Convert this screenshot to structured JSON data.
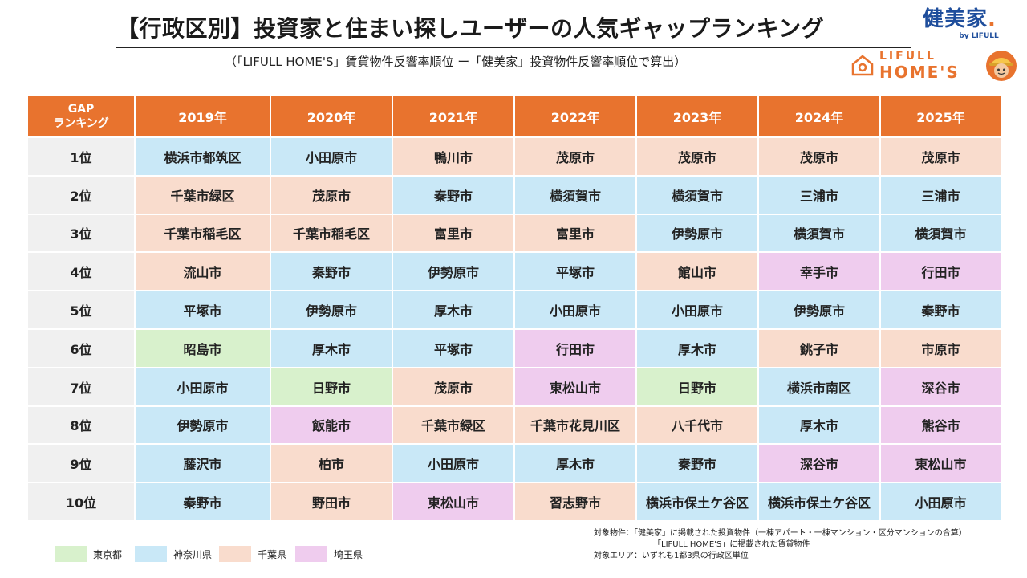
{
  "header": {
    "title": "【行政区別】投資家と住まい探しユーザーの人気ギャップランキング",
    "subtitle": "（「LIFULL HOME'S」賃貸物件反響率順位 ー「健美家」投資物件反響率順位で算出）"
  },
  "logos": {
    "kenbiya": {
      "main": "健美家",
      "dot": ".",
      "sub": "by LIFULL"
    },
    "homes": {
      "line1": "LIFULL",
      "line2": "HOME'S"
    }
  },
  "colors": {
    "header_bg": "#e8732e",
    "tokyo": "#d8f1cc",
    "kanagawa": "#c9e8f7",
    "chiba": "#f9dccd",
    "saitama": "#efccee"
  },
  "table": {
    "header": {
      "gap_line1": "GAP",
      "gap_line2": "ランキング",
      "years": [
        "2019年",
        "2020年",
        "2021年",
        "2022年",
        "2023年",
        "2024年",
        "2025年"
      ]
    },
    "rows": [
      {
        "rank": "1位",
        "cells": [
          {
            "name": "横浜市都筑区",
            "pref": "kanagawa"
          },
          {
            "name": "小田原市",
            "pref": "kanagawa"
          },
          {
            "name": "鴨川市",
            "pref": "chiba"
          },
          {
            "name": "茂原市",
            "pref": "chiba"
          },
          {
            "name": "茂原市",
            "pref": "chiba"
          },
          {
            "name": "茂原市",
            "pref": "chiba"
          },
          {
            "name": "茂原市",
            "pref": "chiba"
          }
        ]
      },
      {
        "rank": "2位",
        "cells": [
          {
            "name": "千葉市緑区",
            "pref": "chiba"
          },
          {
            "name": "茂原市",
            "pref": "chiba"
          },
          {
            "name": "秦野市",
            "pref": "kanagawa"
          },
          {
            "name": "横須賀市",
            "pref": "kanagawa"
          },
          {
            "name": "横須賀市",
            "pref": "kanagawa"
          },
          {
            "name": "三浦市",
            "pref": "kanagawa"
          },
          {
            "name": "三浦市",
            "pref": "kanagawa"
          }
        ]
      },
      {
        "rank": "3位",
        "cells": [
          {
            "name": "千葉市稲毛区",
            "pref": "chiba"
          },
          {
            "name": "千葉市稲毛区",
            "pref": "chiba"
          },
          {
            "name": "富里市",
            "pref": "chiba"
          },
          {
            "name": "富里市",
            "pref": "chiba"
          },
          {
            "name": "伊勢原市",
            "pref": "kanagawa"
          },
          {
            "name": "横須賀市",
            "pref": "kanagawa"
          },
          {
            "name": "横須賀市",
            "pref": "kanagawa"
          }
        ]
      },
      {
        "rank": "4位",
        "cells": [
          {
            "name": "流山市",
            "pref": "chiba"
          },
          {
            "name": "秦野市",
            "pref": "kanagawa"
          },
          {
            "name": "伊勢原市",
            "pref": "kanagawa"
          },
          {
            "name": "平塚市",
            "pref": "kanagawa"
          },
          {
            "name": "館山市",
            "pref": "chiba"
          },
          {
            "name": "幸手市",
            "pref": "saitama"
          },
          {
            "name": "行田市",
            "pref": "saitama"
          }
        ]
      },
      {
        "rank": "5位",
        "cells": [
          {
            "name": "平塚市",
            "pref": "kanagawa"
          },
          {
            "name": "伊勢原市",
            "pref": "kanagawa"
          },
          {
            "name": "厚木市",
            "pref": "kanagawa"
          },
          {
            "name": "小田原市",
            "pref": "kanagawa"
          },
          {
            "name": "小田原市",
            "pref": "kanagawa"
          },
          {
            "name": "伊勢原市",
            "pref": "kanagawa"
          },
          {
            "name": "秦野市",
            "pref": "kanagawa"
          }
        ]
      },
      {
        "rank": "6位",
        "cells": [
          {
            "name": "昭島市",
            "pref": "tokyo"
          },
          {
            "name": "厚木市",
            "pref": "kanagawa"
          },
          {
            "name": "平塚市",
            "pref": "kanagawa"
          },
          {
            "name": "行田市",
            "pref": "saitama"
          },
          {
            "name": "厚木市",
            "pref": "kanagawa"
          },
          {
            "name": "銚子市",
            "pref": "chiba"
          },
          {
            "name": "市原市",
            "pref": "chiba"
          }
        ]
      },
      {
        "rank": "7位",
        "cells": [
          {
            "name": "小田原市",
            "pref": "kanagawa"
          },
          {
            "name": "日野市",
            "pref": "tokyo"
          },
          {
            "name": "茂原市",
            "pref": "chiba"
          },
          {
            "name": "東松山市",
            "pref": "saitama"
          },
          {
            "name": "日野市",
            "pref": "tokyo"
          },
          {
            "name": "横浜市南区",
            "pref": "kanagawa"
          },
          {
            "name": "深谷市",
            "pref": "saitama"
          }
        ]
      },
      {
        "rank": "8位",
        "cells": [
          {
            "name": "伊勢原市",
            "pref": "kanagawa"
          },
          {
            "name": "飯能市",
            "pref": "saitama"
          },
          {
            "name": "千葉市緑区",
            "pref": "chiba"
          },
          {
            "name": "千葉市花見川区",
            "pref": "chiba"
          },
          {
            "name": "八千代市",
            "pref": "chiba"
          },
          {
            "name": "厚木市",
            "pref": "kanagawa"
          },
          {
            "name": "熊谷市",
            "pref": "saitama"
          }
        ]
      },
      {
        "rank": "9位",
        "cells": [
          {
            "name": "藤沢市",
            "pref": "kanagawa"
          },
          {
            "name": "柏市",
            "pref": "chiba"
          },
          {
            "name": "小田原市",
            "pref": "kanagawa"
          },
          {
            "name": "厚木市",
            "pref": "kanagawa"
          },
          {
            "name": "秦野市",
            "pref": "kanagawa"
          },
          {
            "name": "深谷市",
            "pref": "saitama"
          },
          {
            "name": "東松山市",
            "pref": "saitama"
          }
        ]
      },
      {
        "rank": "10位",
        "cells": [
          {
            "name": "秦野市",
            "pref": "kanagawa"
          },
          {
            "name": "野田市",
            "pref": "chiba"
          },
          {
            "name": "東松山市",
            "pref": "saitama"
          },
          {
            "name": "習志野市",
            "pref": "chiba"
          },
          {
            "name": "横浜市保土ケ谷区",
            "pref": "kanagawa"
          },
          {
            "name": "横浜市保土ケ谷区",
            "pref": "kanagawa"
          },
          {
            "name": "小田原市",
            "pref": "kanagawa"
          }
        ]
      }
    ]
  },
  "legend": [
    {
      "key": "tokyo",
      "label": "東京都"
    },
    {
      "key": "kanagawa",
      "label": "神奈川県"
    },
    {
      "key": "chiba",
      "label": "千葉県"
    },
    {
      "key": "saitama",
      "label": "埼玉県"
    }
  ],
  "notes": {
    "line1": "対象物件：「健美家」に掲載された投資物件（一棟アパート・一棟マンション・区分マンションの合算）",
    "line2": "「LIFULL HOME'S」に掲載された賃貸物件",
    "line3": "対象エリア：いずれも1都3県の行政区単位"
  }
}
